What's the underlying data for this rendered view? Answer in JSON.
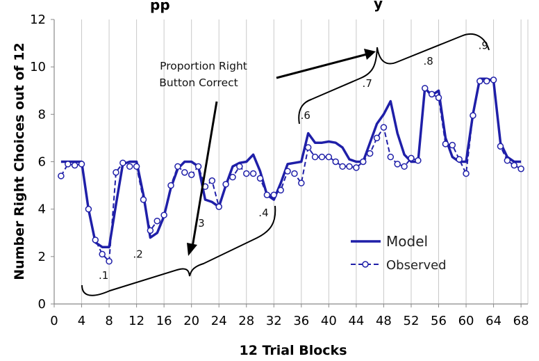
{
  "chart_data": {
    "type": "line",
    "title_fragment": "pp",
    "title_fragment_right": "y",
    "xlabel": "12 Trial Blocks",
    "ylabel": "Number Right Choices out of 12",
    "xlim": [
      0,
      69
    ],
    "ylim": [
      0,
      12
    ],
    "x_ticks": [
      0,
      4,
      8,
      12,
      16,
      20,
      24,
      28,
      32,
      36,
      40,
      44,
      48,
      52,
      56,
      60,
      64,
      68
    ],
    "y_ticks": [
      0,
      2,
      4,
      6,
      8,
      10,
      12
    ],
    "grid": "vertical",
    "legend_position": "lower-right",
    "colors": {
      "series": "#1F1FA8",
      "grid": "#c8c8c8"
    },
    "series": [
      {
        "name": "Model",
        "style": "solid",
        "points": [
          [
            1,
            6.0
          ],
          [
            4,
            6.0
          ],
          [
            5,
            4.0
          ],
          [
            6,
            2.6
          ],
          [
            7,
            2.4
          ],
          [
            8,
            2.4
          ],
          [
            9,
            4.2
          ],
          [
            10,
            5.9
          ],
          [
            11,
            6.0
          ],
          [
            12,
            6.0
          ],
          [
            13,
            4.6
          ],
          [
            14,
            2.8
          ],
          [
            15,
            3.0
          ],
          [
            16,
            3.7
          ],
          [
            17,
            4.9
          ],
          [
            18,
            5.7
          ],
          [
            19,
            6.0
          ],
          [
            20,
            6.0
          ],
          [
            21,
            5.8
          ],
          [
            22,
            4.4
          ],
          [
            23,
            4.3
          ],
          [
            24,
            4.1
          ],
          [
            25,
            5.0
          ],
          [
            26,
            5.8
          ],
          [
            27,
            5.95
          ],
          [
            28,
            6.0
          ],
          [
            29,
            6.3
          ],
          [
            30,
            5.6
          ],
          [
            31,
            4.6
          ],
          [
            32,
            4.4
          ],
          [
            33,
            5.1
          ],
          [
            34,
            5.9
          ],
          [
            35,
            5.95
          ],
          [
            36,
            6.0
          ],
          [
            37,
            7.2
          ],
          [
            38,
            6.8
          ],
          [
            39,
            6.8
          ],
          [
            40,
            6.85
          ],
          [
            41,
            6.8
          ],
          [
            42,
            6.6
          ],
          [
            43,
            6.1
          ],
          [
            44,
            6.0
          ],
          [
            45,
            6.0
          ],
          [
            46,
            6.8
          ],
          [
            47,
            7.6
          ],
          [
            48,
            8.0
          ],
          [
            49,
            8.55
          ],
          [
            50,
            7.2
          ],
          [
            51,
            6.3
          ],
          [
            52,
            6.0
          ],
          [
            53,
            6.0
          ],
          [
            54,
            9.1
          ],
          [
            55,
            8.8
          ],
          [
            56,
            9.0
          ],
          [
            57,
            7.0
          ],
          [
            58,
            6.2
          ],
          [
            59,
            6.0
          ],
          [
            60,
            6.0
          ],
          [
            61,
            8.0
          ],
          [
            62,
            9.5
          ],
          [
            63,
            9.5
          ],
          [
            64,
            9.4
          ],
          [
            65,
            6.8
          ],
          [
            66,
            6.2
          ],
          [
            67,
            6.0
          ],
          [
            68,
            6.0
          ]
        ]
      },
      {
        "name": "Observed",
        "style": "dashed-circle",
        "points": [
          [
            1,
            5.4
          ],
          [
            2,
            5.9
          ],
          [
            3,
            5.85
          ],
          [
            4,
            5.9
          ],
          [
            5,
            4.0
          ],
          [
            6,
            2.7
          ],
          [
            7,
            2.1
          ],
          [
            8,
            1.8
          ],
          [
            9,
            5.55
          ],
          [
            10,
            5.95
          ],
          [
            11,
            5.8
          ],
          [
            12,
            5.8
          ],
          [
            13,
            4.4
          ],
          [
            14,
            3.1
          ],
          [
            15,
            3.5
          ],
          [
            16,
            3.75
          ],
          [
            17,
            5.0
          ],
          [
            18,
            5.8
          ],
          [
            19,
            5.55
          ],
          [
            20,
            5.45
          ],
          [
            21,
            5.8
          ],
          [
            22,
            4.95
          ],
          [
            23,
            5.2
          ],
          [
            24,
            4.1
          ],
          [
            25,
            5.05
          ],
          [
            26,
            5.35
          ],
          [
            27,
            5.8
          ],
          [
            28,
            5.5
          ],
          [
            29,
            5.5
          ],
          [
            30,
            5.3
          ],
          [
            31,
            4.6
          ],
          [
            32,
            4.6
          ],
          [
            33,
            4.8
          ],
          [
            34,
            5.6
          ],
          [
            35,
            5.5
          ],
          [
            36,
            5.1
          ],
          [
            37,
            6.6
          ],
          [
            38,
            6.2
          ],
          [
            39,
            6.2
          ],
          [
            40,
            6.2
          ],
          [
            41,
            6.0
          ],
          [
            42,
            5.8
          ],
          [
            43,
            5.8
          ],
          [
            44,
            5.75
          ],
          [
            45,
            6.0
          ],
          [
            46,
            6.35
          ],
          [
            47,
            7.0
          ],
          [
            48,
            7.45
          ],
          [
            49,
            6.2
          ],
          [
            50,
            5.9
          ],
          [
            51,
            5.8
          ],
          [
            52,
            6.15
          ],
          [
            53,
            6.05
          ],
          [
            54,
            9.1
          ],
          [
            55,
            8.85
          ],
          [
            56,
            8.7
          ],
          [
            57,
            6.75
          ],
          [
            58,
            6.7
          ],
          [
            59,
            6.1
          ],
          [
            60,
            5.5
          ],
          [
            61,
            7.95
          ],
          [
            62,
            9.4
          ],
          [
            63,
            9.4
          ],
          [
            64,
            9.45
          ],
          [
            65,
            6.65
          ],
          [
            66,
            6.05
          ],
          [
            67,
            5.85
          ],
          [
            68,
            5.7
          ]
        ]
      }
    ],
    "annotations": {
      "callout_line1": "Proportion Right",
      "callout_line2": "Button Correct",
      "proportions": [
        {
          "text": ".1",
          "x": 7.2,
          "y": 1.05
        },
        {
          "text": ".2",
          "x": 12.2,
          "y": 1.95
        },
        {
          "text": ".3",
          "x": 21.2,
          "y": 3.25
        },
        {
          "text": ".4",
          "x": 30.5,
          "y": 3.7
        },
        {
          "text": ".6",
          "x": 36.6,
          "y": 7.8
        },
        {
          "text": ".7",
          "x": 45.6,
          "y": 9.15
        },
        {
          "text": ".8",
          "x": 54.5,
          "y": 10.1
        },
        {
          "text": ".9",
          "x": 62.5,
          "y": 10.75
        }
      ]
    }
  }
}
